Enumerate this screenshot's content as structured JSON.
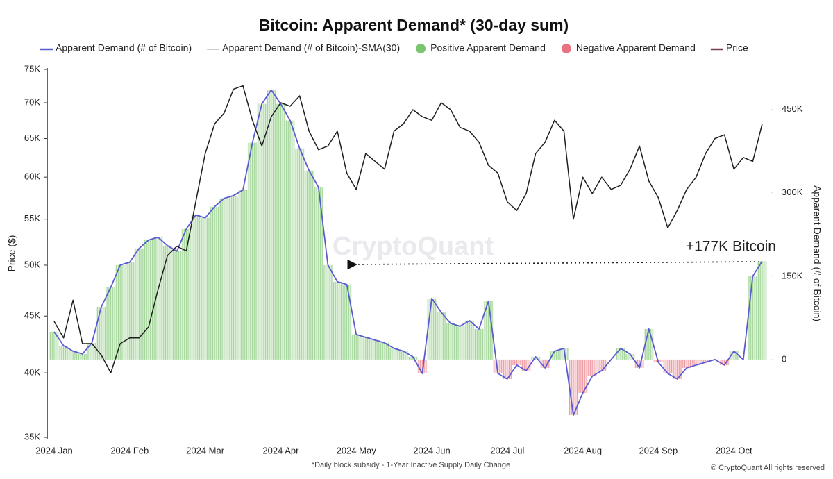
{
  "chart_data": {
    "type": "dual-axis-line-bar",
    "title": "Bitcoin: Apparent Demand* (30-day sum)",
    "legend": [
      {
        "name": "Apparent Demand (# of Bitcoin)",
        "color": "#5a5ad2",
        "marker": "line"
      },
      {
        "name": "Apparent Demand (# of Bitcoin)-SMA(30)",
        "color": "#9a9a9a",
        "marker": "line"
      },
      {
        "name": "Positive Apparent Demand",
        "color": "#7cc46f",
        "marker": "dot"
      },
      {
        "name": "Negative Apparent Demand",
        "color": "#e8727e",
        "marker": "dot"
      },
      {
        "name": "Price",
        "color": "#7a3b5a",
        "marker": "line"
      }
    ],
    "y_label": "Price ($)",
    "y2_label": "Apparent Demand (# of Bitcoin)",
    "footnote": "*Daily block subsidy - 1-Year Inactive Supply Daily Change",
    "copyright": "© CryptoQuant All rights reserved",
    "watermark": "CryptoQuant",
    "annotation": "+177K Bitcoin",
    "categories": [
      "2024 Jan",
      null,
      null,
      null,
      null,
      null,
      null,
      null,
      "2024 Feb",
      null,
      null,
      null,
      null,
      null,
      null,
      null,
      "2024 Mar",
      null,
      null,
      null,
      null,
      null,
      null,
      null,
      "2024 Apr",
      null,
      null,
      null,
      null,
      null,
      null,
      null,
      "2024 May",
      null,
      null,
      null,
      null,
      null,
      null,
      null,
      "2024 Jun",
      null,
      null,
      null,
      null,
      null,
      null,
      null,
      "2024 Jul",
      null,
      null,
      null,
      null,
      null,
      null,
      null,
      "2024 Aug",
      null,
      null,
      null,
      null,
      null,
      null,
      null,
      "2024 Sep",
      null,
      null,
      null,
      null,
      null,
      null,
      null,
      "2024 Oct",
      null,
      null,
      null
    ],
    "ylim": [
      35000,
      75000
    ],
    "ylog": true,
    "yticks": [
      {
        "value": 35000,
        "label": "35K"
      },
      {
        "value": 40000,
        "label": "40K"
      },
      {
        "value": 45000,
        "label": "45K"
      },
      {
        "value": 50000,
        "label": "50K"
      },
      {
        "value": 55000,
        "label": "55K"
      },
      {
        "value": 60000,
        "label": "60K"
      },
      {
        "value": 65000,
        "label": "65K"
      },
      {
        "value": 70000,
        "label": "70K"
      },
      {
        "value": 75000,
        "label": "75K"
      }
    ],
    "y2lim": [
      -140000,
      522000
    ],
    "y2ticks": [
      0,
      {
        "value": 150000,
        "label": "150K"
      },
      {
        "value": 300000,
        "label": "300K"
      },
      {
        "value": 450000,
        "label": "450K"
      }
    ],
    "positive_color": "#7cc46f",
    "negative_color": "#e8727e",
    "series": [
      {
        "name": "Apparent Demand (# of Bitcoin)",
        "color": "#5a5ad2",
        "axis": "y2",
        "style": "bars",
        "values": [
          50000,
          25000,
          15000,
          10000,
          30000,
          95000,
          130000,
          170000,
          175000,
          200000,
          215000,
          220000,
          205000,
          195000,
          235000,
          260000,
          255000,
          275000,
          290000,
          295000,
          305000,
          390000,
          460000,
          485000,
          460000,
          430000,
          380000,
          340000,
          310000,
          170000,
          140000,
          135000,
          45000,
          40000,
          35000,
          30000,
          20000,
          15000,
          5000,
          -25000,
          110000,
          85000,
          65000,
          60000,
          70000,
          55000,
          105000,
          -25000,
          -35000,
          -10000,
          -20000,
          5000,
          -15000,
          15000,
          20000,
          -100000,
          -60000,
          -30000,
          -20000,
          0,
          20000,
          10000,
          -15000,
          55000,
          -5000,
          -25000,
          -35000,
          -15000,
          -10000,
          -5000,
          0,
          -10000,
          15000,
          0,
          150000,
          177000
        ]
      },
      {
        "name": "Price",
        "color": "#1e1e1e",
        "axis": "y",
        "values": [
          44500,
          43000,
          46500,
          42500,
          42500,
          41500,
          40000,
          42500,
          43000,
          43000,
          44000,
          47500,
          51000,
          52000,
          51500,
          57000,
          63000,
          67000,
          68500,
          72000,
          72500,
          67500,
          64000,
          68000,
          70000,
          69500,
          71000,
          66000,
          63500,
          64000,
          66000,
          60500,
          58500,
          63000,
          62000,
          61000,
          66000,
          67000,
          69000,
          68000,
          67500,
          70000,
          69000,
          66500,
          66000,
          64500,
          61500,
          60500,
          57000,
          56000,
          58000,
          63000,
          64500,
          67500,
          66000,
          55000,
          60000,
          58000,
          60000,
          58500,
          59000,
          61000,
          64000,
          59500,
          57500,
          54000,
          56000,
          58500,
          60000,
          63000,
          65000,
          65500,
          61000,
          62500,
          62000,
          67000
        ]
      }
    ]
  }
}
